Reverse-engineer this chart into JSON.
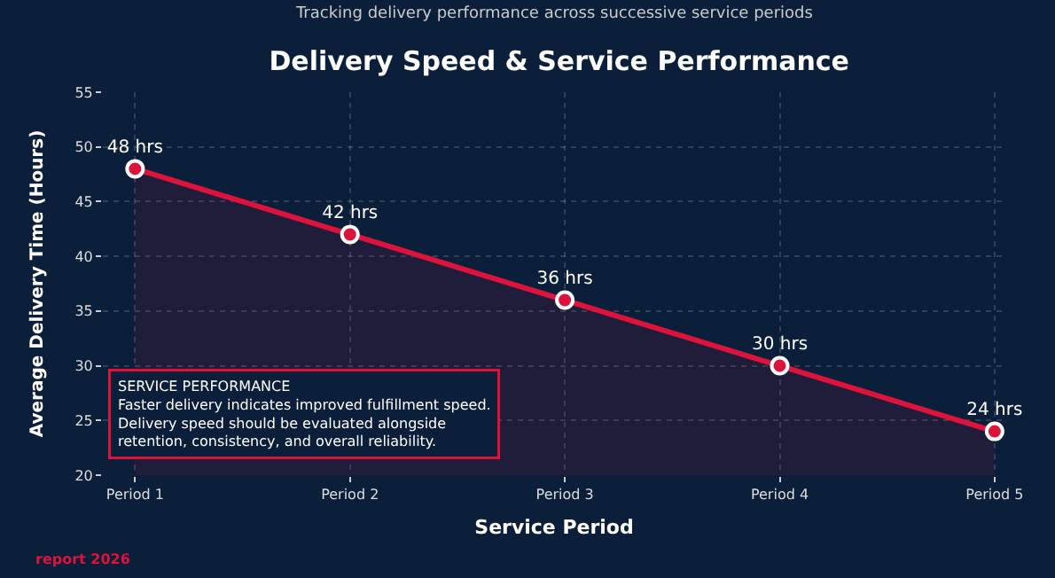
{
  "chart_data": {
    "type": "area",
    "title": "Delivery Speed & Service Performance",
    "subtitle": "Tracking delivery performance across successive service periods",
    "xlabel": "Service Period",
    "ylabel": "Average Delivery Time (Hours)",
    "categories": [
      "Period 1",
      "Period 2",
      "Period 3",
      "Period 4",
      "Period 5"
    ],
    "series": [
      {
        "color": "#dc143c",
        "values": [
          48,
          42,
          36,
          30,
          24
        ],
        "value_labels": [
          "48 hrs",
          "42 hrs",
          "36 hrs",
          "30 hrs",
          "24 hrs"
        ]
      }
    ],
    "ylim": [
      20,
      55
    ],
    "yticks": [
      20,
      25,
      30,
      35,
      40,
      45,
      50,
      55
    ],
    "grid": true,
    "legend": false,
    "marker": "circle",
    "line_style": "solid",
    "annotations": [
      "SERVICE PERFORMANCE\nFaster delivery indicates improved fulfillment speed.\nDelivery speed should be evaluated alongside\nretention, consistency, and overall reliability.",
      "report 2026"
    ]
  }
}
